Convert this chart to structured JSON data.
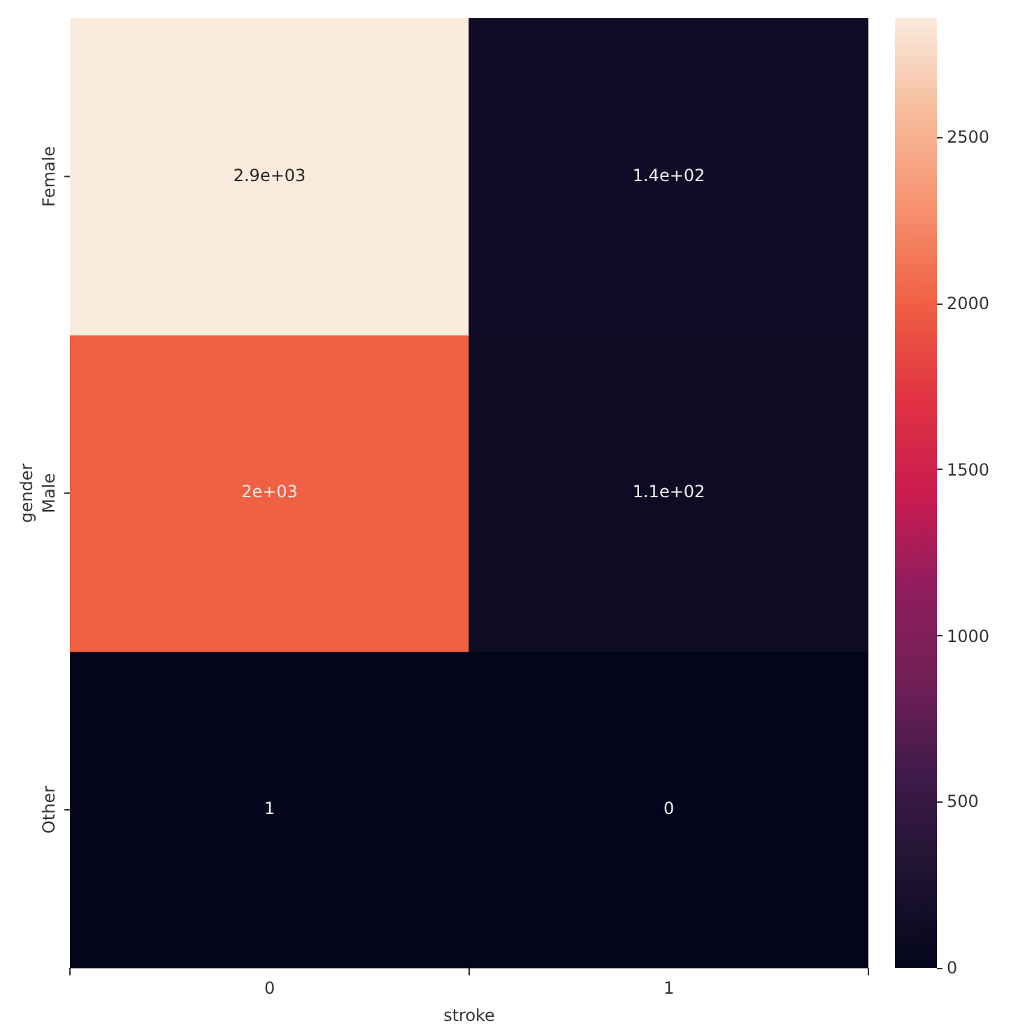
{
  "chart_data": {
    "type": "heatmap",
    "xlabel": "stroke",
    "ylabel": "gender",
    "categories": [
      "0",
      "1"
    ],
    "y_categories": [
      "Female",
      "Male",
      "Other"
    ],
    "cells": [
      [
        2860,
        140
      ],
      [
        2000,
        110
      ],
      [
        1,
        0
      ]
    ],
    "cell_labels": [
      [
        "2.9e+03",
        "1.4e+02"
      ],
      [
        "2e+03",
        "1.1e+02"
      ],
      [
        "1",
        "0"
      ]
    ],
    "clim": [
      0,
      2860
    ],
    "cticks": [
      0,
      500,
      1000,
      1500,
      2000,
      2500
    ]
  }
}
